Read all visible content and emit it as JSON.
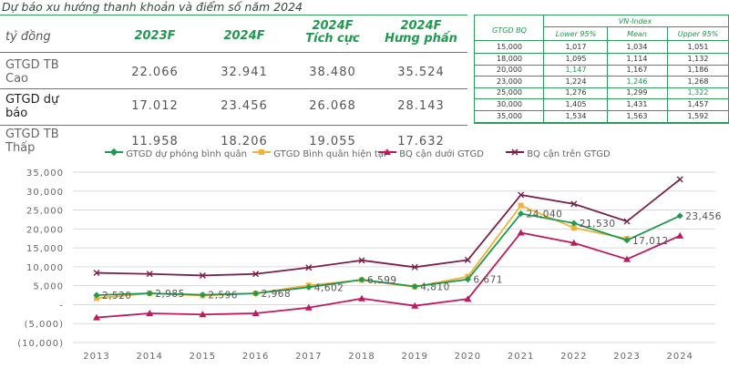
{
  "title": "Dự báo xu hướng thanh khoản và điểm số năm 2024",
  "left_table": {
    "unit": "tỷ đồng",
    "headers": [
      "2023F",
      "2024F",
      "2024F\nTích cực",
      "2024F\nHưng phấn"
    ],
    "rows": [
      {
        "label": "GTGD TB\nCao",
        "values": [
          "22.066",
          "32.941",
          "38.480",
          "35.524"
        ]
      },
      {
        "label": "GTGD dự\nbáo",
        "values": [
          "17.012",
          "23.456",
          "26.068",
          "28.143"
        ]
      },
      {
        "label": "GTGD TB\nThấp",
        "values": [
          "11.958",
          "18.206",
          "19.055",
          "17.632"
        ]
      }
    ]
  },
  "right_table": {
    "col0": "GTGD BQ",
    "group": "VN-Index",
    "subheaders": [
      "Lower 95%",
      "Mean",
      "Upper 95%"
    ],
    "rows": [
      [
        "15,000",
        "1,017",
        "1,034",
        "1,051"
      ],
      [
        "18,000",
        "1,095",
        "1,114",
        "1,132"
      ],
      [
        "20,000",
        "1,147",
        "1,167",
        "1,186"
      ],
      [
        "23,000",
        "1,224",
        "1,246",
        "1,268"
      ],
      [
        "25,000",
        "1,276",
        "1,299",
        "1,322"
      ],
      [
        "30,000",
        "1,405",
        "1,431",
        "1,457"
      ],
      [
        "35,000",
        "1,534",
        "1,563",
        "1,592"
      ]
    ],
    "highlight_color": "#1e9a4e"
  },
  "chart_data": {
    "type": "line",
    "categories": [
      "2013",
      "2014",
      "2015",
      "2016",
      "2017",
      "2018",
      "2019",
      "2020",
      "2021",
      "2022",
      "2023",
      "2024"
    ],
    "ylim": [
      -10000,
      35000
    ],
    "yticks": [
      "35,000",
      "30,000",
      "25,000",
      "20,000",
      "15,000",
      "10,000",
      "5,000",
      "-",
      "(5,000)",
      "(10,000)"
    ],
    "series": [
      {
        "name": "GTGD dự phóng bình quân",
        "color": "#1e9a4e",
        "marker": "diamond",
        "values": [
          2520,
          2985,
          2596,
          2968,
          4602,
          6599,
          4810,
          6671,
          24040,
          21530,
          17012,
          23456
        ]
      },
      {
        "name": "GTGD Bình quân hiện tại",
        "color": "#f2b13a",
        "marker": "square",
        "values": [
          1700,
          3000,
          2400,
          3000,
          5100,
          6500,
          4700,
          7400,
          26200,
          20300,
          17400,
          null
        ]
      },
      {
        "name": "BQ cận dưới GTGD",
        "color": "#c0185f",
        "marker": "triangle",
        "values": [
          -3400,
          -2300,
          -2600,
          -2300,
          -800,
          1600,
          -300,
          1500,
          19000,
          16300,
          12000,
          18200
        ]
      },
      {
        "name": "BQ cận trên GTGD",
        "color": "#7a1f4a",
        "marker": "x",
        "values": [
          8400,
          8100,
          7700,
          8100,
          9800,
          11700,
          9900,
          11800,
          29000,
          26600,
          22000,
          33100
        ]
      }
    ],
    "data_labels": [
      "2,520",
      "2,985",
      "2,596",
      "2,968",
      "4,602",
      "6,599",
      "4,810",
      "6,671",
      "24,040",
      "21,530",
      "17,012",
      "23,456"
    ]
  }
}
